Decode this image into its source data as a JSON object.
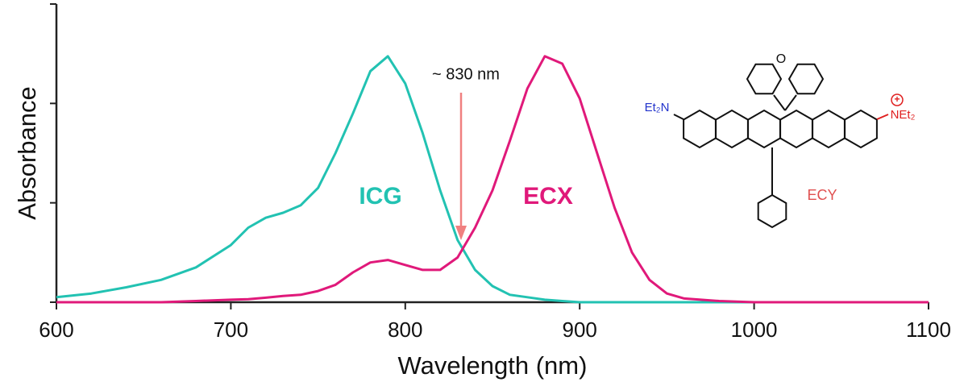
{
  "chart_data": {
    "type": "line",
    "x_label": "Wavelength (nm)",
    "y_label": "Absorbance",
    "x": [
      600,
      620,
      640,
      660,
      680,
      700,
      710,
      720,
      730,
      740,
      750,
      760,
      770,
      780,
      790,
      800,
      810,
      820,
      830,
      840,
      850,
      860,
      870,
      880,
      890,
      900,
      910,
      920,
      930,
      940,
      950,
      960,
      980,
      1000,
      1050,
      1100
    ],
    "series": [
      {
        "name": "ICG",
        "color": "#22c2b2",
        "values": [
          0.02,
          0.035,
          0.06,
          0.09,
          0.14,
          0.23,
          0.3,
          0.34,
          0.36,
          0.39,
          0.46,
          0.6,
          0.76,
          0.93,
          0.99,
          0.88,
          0.68,
          0.45,
          0.25,
          0.13,
          0.065,
          0.03,
          0.02,
          0.01,
          0.005,
          0,
          0,
          0,
          0,
          0,
          0,
          0,
          0,
          0,
          0,
          0
        ]
      },
      {
        "name": "ECX",
        "color": "#e0197a",
        "values": [
          0,
          0,
          0,
          0,
          0.005,
          0.01,
          0.012,
          0.018,
          0.025,
          0.03,
          0.045,
          0.07,
          0.12,
          0.16,
          0.17,
          0.15,
          0.13,
          0.13,
          0.18,
          0.3,
          0.45,
          0.65,
          0.86,
          0.99,
          0.96,
          0.82,
          0.6,
          0.38,
          0.2,
          0.09,
          0.035,
          0.015,
          0.005,
          0,
          0,
          0
        ]
      }
    ],
    "xlim": [
      600,
      1100
    ],
    "xticks": [
      600,
      700,
      800,
      900,
      1000,
      1100
    ],
    "ylim": [
      0,
      1.2
    ],
    "yticks": [
      0,
      0.4,
      0.8,
      1.2
    ],
    "ytick_labels": false,
    "annotation": "~ 830 nm",
    "structure": {
      "left_group": "Et₂N",
      "right_group": "NEt₂",
      "name": "ECY"
    }
  }
}
